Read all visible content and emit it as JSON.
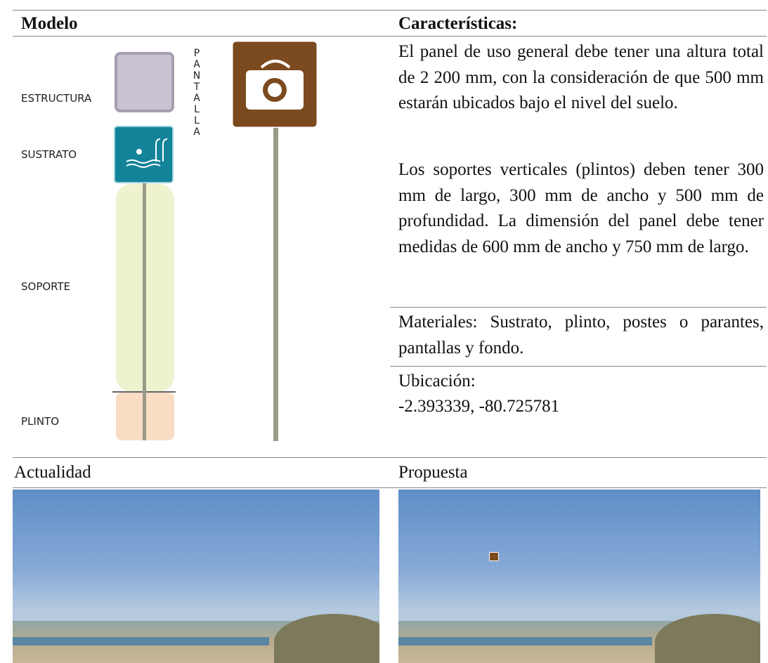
{
  "header": {
    "left": "Modelo",
    "right": "Características:"
  },
  "diagram": {
    "labels": [
      "ESTRUCTURA",
      "SUSTRATO",
      "SOPORTE",
      "PLINTO"
    ],
    "vertical_label": "PANTALLA"
  },
  "description": {
    "paragraphs": [
      "El panel de uso general debe tener una altura total de 2 200 mm, con la consideración de que 500 mm estarán ubicados bajo el nivel del suelo.",
      "Los soportes verticales (plintos) deben tener 300 mm de largo, 300 mm de ancho y 500 mm de profundidad. La dimensión del panel debe tener medidas de 600 mm de ancho y 750 mm de largo."
    ],
    "materials": "Materiales: Sustrato, plinto, postes o parantes, pantallas y fondo.",
    "location_label": "Ubicación:",
    "location": "-2.393339, -80.725781"
  },
  "photos": {
    "left": "Actualidad",
    "right": "Propuesta"
  }
}
